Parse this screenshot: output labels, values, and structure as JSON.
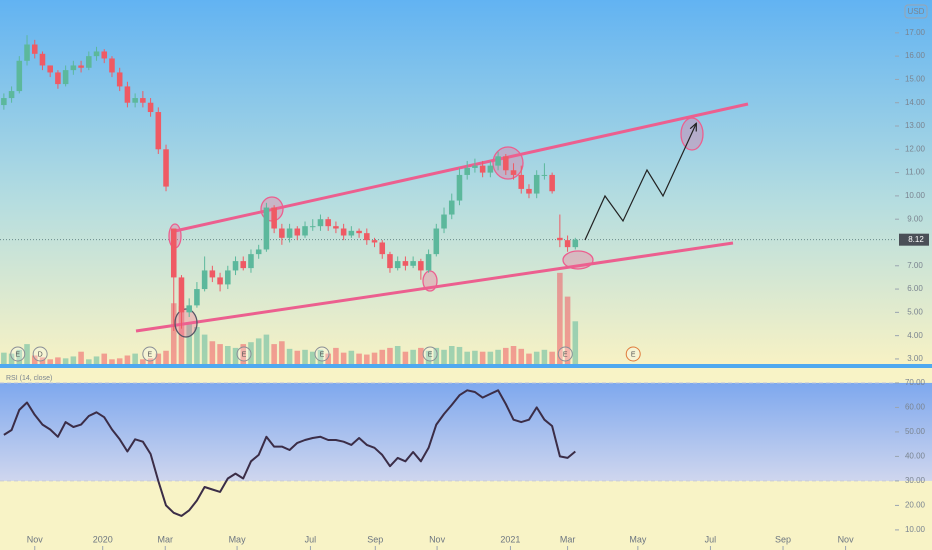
{
  "chart_data": {
    "type": "candlestick",
    "currency": "USD",
    "x": [
      0,
      1,
      2,
      3,
      4,
      5,
      6,
      7,
      8,
      9,
      10,
      11,
      12,
      13,
      14,
      15,
      16,
      17,
      18,
      19,
      20,
      21,
      22,
      23,
      24,
      25,
      26,
      27,
      28,
      29,
      30,
      31,
      32,
      33,
      34,
      35,
      36,
      37,
      38,
      39,
      40,
      41,
      42,
      43,
      44,
      45,
      46,
      47,
      48,
      49,
      50,
      51,
      52,
      53,
      54,
      55,
      56,
      57,
      58,
      59,
      60,
      61,
      62,
      63,
      64,
      65,
      66,
      67,
      68,
      69,
      70,
      71,
      72,
      73,
      74
    ],
    "open": [
      13.9,
      14.2,
      14.5,
      15.8,
      16.5,
      16.1,
      15.6,
      15.3,
      14.8,
      15.4,
      15.6,
      15.5,
      16.0,
      16.2,
      15.9,
      15.3,
      14.7,
      14.0,
      14.2,
      14.0,
      13.6,
      12.0,
      8.6,
      6.5,
      5.0,
      5.3,
      6.0,
      6.8,
      6.5,
      6.2,
      6.8,
      7.2,
      6.9,
      7.5,
      7.7,
      9.5,
      8.6,
      8.2,
      8.6,
      8.3,
      8.7,
      8.7,
      9.0,
      8.7,
      8.6,
      8.3,
      8.5,
      8.4,
      8.1,
      8.0,
      7.5,
      6.9,
      7.2,
      7.0,
      7.2,
      6.8,
      7.5,
      8.6,
      9.2,
      9.8,
      10.9,
      11.2,
      11.3,
      11.0,
      11.3,
      11.7,
      11.1,
      10.9,
      10.3,
      10.1,
      10.9,
      10.9,
      8.2,
      8.1,
      7.8
    ],
    "high": [
      14.4,
      14.7,
      16.0,
      16.9,
      16.7,
      16.2,
      15.6,
      15.4,
      15.6,
      15.8,
      15.8,
      16.2,
      16.4,
      16.3,
      16.0,
      15.5,
      14.9,
      14.4,
      14.5,
      14.2,
      13.8,
      12.2,
      8.6,
      6.6,
      5.6,
      6.3,
      7.4,
      7.0,
      6.7,
      7.0,
      7.4,
      7.4,
      7.7,
      7.9,
      9.7,
      9.6,
      8.8,
      8.8,
      8.7,
      8.9,
      9.0,
      9.2,
      9.1,
      8.9,
      8.8,
      8.7,
      8.6,
      8.6,
      8.2,
      8.1,
      7.6,
      7.4,
      7.4,
      7.4,
      7.3,
      7.7,
      8.8,
      9.5,
      10.1,
      11.2,
      11.5,
      11.6,
      11.5,
      11.5,
      11.9,
      11.8,
      11.4,
      11.3,
      10.5,
      11.1,
      11.4,
      11.0,
      9.2,
      8.3,
      8.2
    ],
    "low": [
      13.7,
      14.0,
      14.4,
      15.6,
      15.9,
      15.4,
      15.1,
      14.6,
      14.7,
      15.2,
      15.3,
      15.4,
      15.8,
      15.7,
      15.1,
      14.5,
      13.8,
      13.8,
      13.8,
      13.4,
      11.8,
      10.2,
      4.2,
      4.3,
      4.8,
      5.2,
      5.9,
      6.3,
      5.9,
      6.0,
      6.6,
      6.8,
      6.7,
      7.3,
      7.6,
      8.4,
      7.9,
      8.0,
      8.1,
      8.2,
      8.5,
      8.5,
      8.5,
      8.4,
      8.1,
      8.2,
      8.2,
      7.9,
      7.8,
      7.3,
      6.7,
      6.8,
      6.8,
      6.9,
      6.4,
      6.7,
      7.4,
      8.4,
      9.0,
      9.6,
      10.7,
      11.0,
      10.8,
      10.8,
      11.1,
      10.9,
      10.7,
      10.1,
      9.9,
      9.9,
      10.7,
      10.1,
      7.8,
      7.6,
      7.7
    ],
    "close": [
      14.2,
      14.5,
      15.8,
      16.5,
      16.1,
      15.6,
      15.3,
      14.8,
      15.4,
      15.6,
      15.5,
      16.0,
      16.2,
      15.9,
      15.3,
      14.7,
      14.0,
      14.2,
      14.0,
      13.6,
      12.0,
      10.4,
      6.5,
      5.0,
      5.3,
      6.0,
      6.8,
      6.5,
      6.2,
      6.8,
      7.2,
      6.9,
      7.5,
      7.7,
      9.5,
      8.6,
      8.2,
      8.6,
      8.3,
      8.7,
      8.7,
      9.0,
      8.7,
      8.6,
      8.3,
      8.5,
      8.4,
      8.1,
      8.0,
      7.5,
      6.9,
      7.2,
      7.0,
      7.2,
      6.8,
      7.5,
      8.6,
      9.2,
      9.8,
      10.9,
      11.2,
      11.3,
      11.0,
      11.3,
      11.7,
      11.1,
      10.9,
      10.3,
      10.1,
      10.9,
      10.9,
      10.2,
      8.1,
      7.8,
      8.12
    ],
    "volume": [
      13,
      12,
      16,
      22,
      10,
      8,
      6,
      8,
      7,
      9,
      14,
      6,
      9,
      12,
      6,
      7,
      10,
      12,
      6,
      7,
      12,
      15,
      65,
      62,
      45,
      40,
      32,
      25,
      22,
      20,
      18,
      22,
      24,
      28,
      32,
      22,
      25,
      17,
      15,
      16,
      14,
      16,
      12,
      18,
      13,
      15,
      12,
      11,
      13,
      16,
      18,
      20,
      14,
      16,
      18,
      15,
      18,
      16,
      20,
      19,
      14,
      15,
      14,
      14,
      16,
      18,
      20,
      17,
      12,
      14,
      16,
      14,
      97,
      72,
      46
    ],
    "up_color": "#5cb89c",
    "down_color": "#ef5a64",
    "last_price": 8.12,
    "xlim": [
      -0.5,
      115.4
    ],
    "xticks": [
      {
        "value": 4.0,
        "label": "Nov"
      },
      {
        "value": 12.8,
        "label": "2020"
      },
      {
        "value": 20.9,
        "label": "Mar"
      },
      {
        "value": 30.2,
        "label": "May"
      },
      {
        "value": 39.7,
        "label": "Jul"
      },
      {
        "value": 48.1,
        "label": "Sep"
      },
      {
        "value": 56.1,
        "label": "Nov"
      },
      {
        "value": 65.6,
        "label": "2021"
      },
      {
        "value": 73.0,
        "label": "Mar"
      },
      {
        "value": 82.1,
        "label": "May"
      },
      {
        "value": 91.5,
        "label": "Jul"
      },
      {
        "value": 100.9,
        "label": "Sep"
      },
      {
        "value": 109.0,
        "label": "Nov"
      }
    ],
    "ylim": [
      2.74,
      18.41
    ],
    "yticks": [
      {
        "value": 3,
        "label": "3.00"
      },
      {
        "value": 4,
        "label": "4.00"
      },
      {
        "value": 5,
        "label": "5.00"
      },
      {
        "value": 6,
        "label": "6.00"
      },
      {
        "value": 7,
        "label": "7.00"
      },
      {
        "value": 9,
        "label": "9.00"
      },
      {
        "value": 10,
        "label": "10.00"
      },
      {
        "value": 11,
        "label": "11.00"
      },
      {
        "value": 12,
        "label": "12.00"
      },
      {
        "value": 13,
        "label": "13.00"
      },
      {
        "value": 14,
        "label": "14.00"
      },
      {
        "value": 15,
        "label": "15.00"
      },
      {
        "value": 16,
        "label": "16.00"
      },
      {
        "value": 17,
        "label": "17.00"
      }
    ],
    "events": [
      {
        "x": 1.8,
        "label": "E"
      },
      {
        "x": 4.7,
        "label": "D"
      },
      {
        "x": 18.9,
        "label": "E"
      },
      {
        "x": 31.1,
        "label": "E"
      },
      {
        "x": 41.2,
        "label": "E"
      },
      {
        "x": 55.2,
        "label": "E"
      },
      {
        "x": 72.7,
        "label": "E"
      },
      {
        "x": 81.5,
        "label": "E"
      }
    ],
    "rsi": {
      "title": "RSI (14, close)",
      "color": "#3b2d47",
      "values": [
        48.8,
        50.8,
        59,
        62,
        57,
        53,
        51,
        48,
        54,
        52,
        53,
        56.5,
        58,
        56,
        51,
        47,
        42,
        47,
        46,
        41,
        30,
        20,
        17,
        15.7,
        18,
        22,
        27.5,
        26.5,
        25.5,
        31,
        33,
        31,
        38,
        40.6,
        48,
        44,
        44,
        42.6,
        45.5,
        46.7,
        47.5,
        48,
        46.7,
        46.7,
        46,
        44.7,
        47.5,
        44.7,
        43.5,
        40.6,
        36,
        39.4,
        38,
        41.8,
        38,
        43.5,
        53,
        57.3,
        61,
        65,
        67,
        66.3,
        64,
        65.5,
        67,
        61.4,
        55,
        54,
        55,
        60,
        55,
        52.4,
        40,
        39.4,
        42
      ],
      "band": [
        30,
        70
      ],
      "ylim": [
        1.8,
        76.5
      ],
      "yticks": [
        {
          "value": 10,
          "label": "10.00"
        },
        {
          "value": 20,
          "label": "20.00"
        },
        {
          "value": 30,
          "label": "30.00"
        },
        {
          "value": 40,
          "label": "40.00"
        },
        {
          "value": 50,
          "label": "50.00"
        },
        {
          "value": 60,
          "label": "60.00"
        },
        {
          "value": 70,
          "label": "70.00"
        }
      ]
    }
  }
}
